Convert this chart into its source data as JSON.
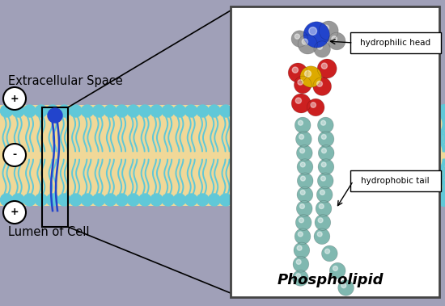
{
  "bg_color": "#a0a0b8",
  "membrane_bg": "#f0d898",
  "head_color": "#60c8d8",
  "tail_color": "#50b8c8",
  "label_extracellular": "Extracellular Space",
  "label_lumen": "Lumen of Cell",
  "label_phospholipid": "Phospholipid",
  "label_hydrophilic": "hydrophilic head",
  "label_hydrophobic": "hydrophobic tail",
  "box_bg": "#ffffff",
  "blue_head_color": "#2244cc",
  "yellow_color": "#ddaa00",
  "red_color": "#cc2020",
  "gray_color": "#999999",
  "teal_color": "#80b8b0"
}
